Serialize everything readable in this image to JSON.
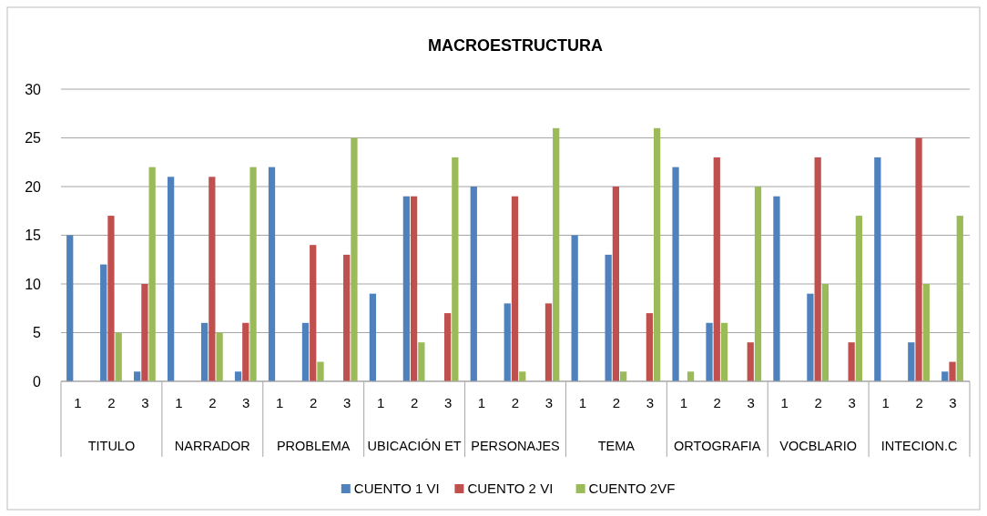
{
  "chart_data": {
    "type": "bar",
    "title": "MACROESTRUCTURA",
    "categories": [
      "1",
      "2",
      "3",
      "1",
      "2",
      "3",
      "1",
      "2",
      "3",
      "1",
      "2",
      "3",
      "1",
      "2",
      "3",
      "1",
      "2",
      "3",
      "1",
      "2",
      "3",
      "1",
      "2",
      "3",
      "1",
      "2",
      "3"
    ],
    "annotations": [
      "TITULO",
      "NARRADOR",
      "PROBLEMA",
      "UBICACIÓN ET",
      "PERSONAJES",
      "TEMA",
      "ORTOGRAFIA",
      "VOCBLARIO",
      "INTECION.C"
    ],
    "series": [
      {
        "name": "CUENTO 1 VI",
        "color": "#4f81bd",
        "values": [
          15,
          12,
          1,
          21,
          6,
          1,
          22,
          6,
          0,
          9,
          19,
          0,
          20,
          8,
          0,
          15,
          13,
          0,
          22,
          6,
          0,
          19,
          9,
          0,
          23,
          4,
          1
        ]
      },
      {
        "name": "CUENTO 2  VI",
        "color": "#c0504d",
        "values": [
          0,
          17,
          10,
          0,
          21,
          6,
          0,
          14,
          13,
          0,
          19,
          7,
          0,
          19,
          8,
          0,
          20,
          7,
          0,
          23,
          4,
          0,
          23,
          4,
          0,
          25,
          2
        ]
      },
      {
        "name": "CUENTO  2VF",
        "color": "#9bbb59",
        "values": [
          0,
          5,
          22,
          0,
          5,
          22,
          0,
          2,
          25,
          0,
          4,
          23,
          0,
          1,
          26,
          0,
          1,
          26,
          1,
          6,
          20,
          0,
          10,
          17,
          0,
          10,
          17
        ]
      }
    ],
    "ylim": [
      0,
      30
    ],
    "yticks": [
      0,
      5,
      10,
      15,
      20,
      25,
      30
    ],
    "grid": "y",
    "legend": "bottom"
  }
}
